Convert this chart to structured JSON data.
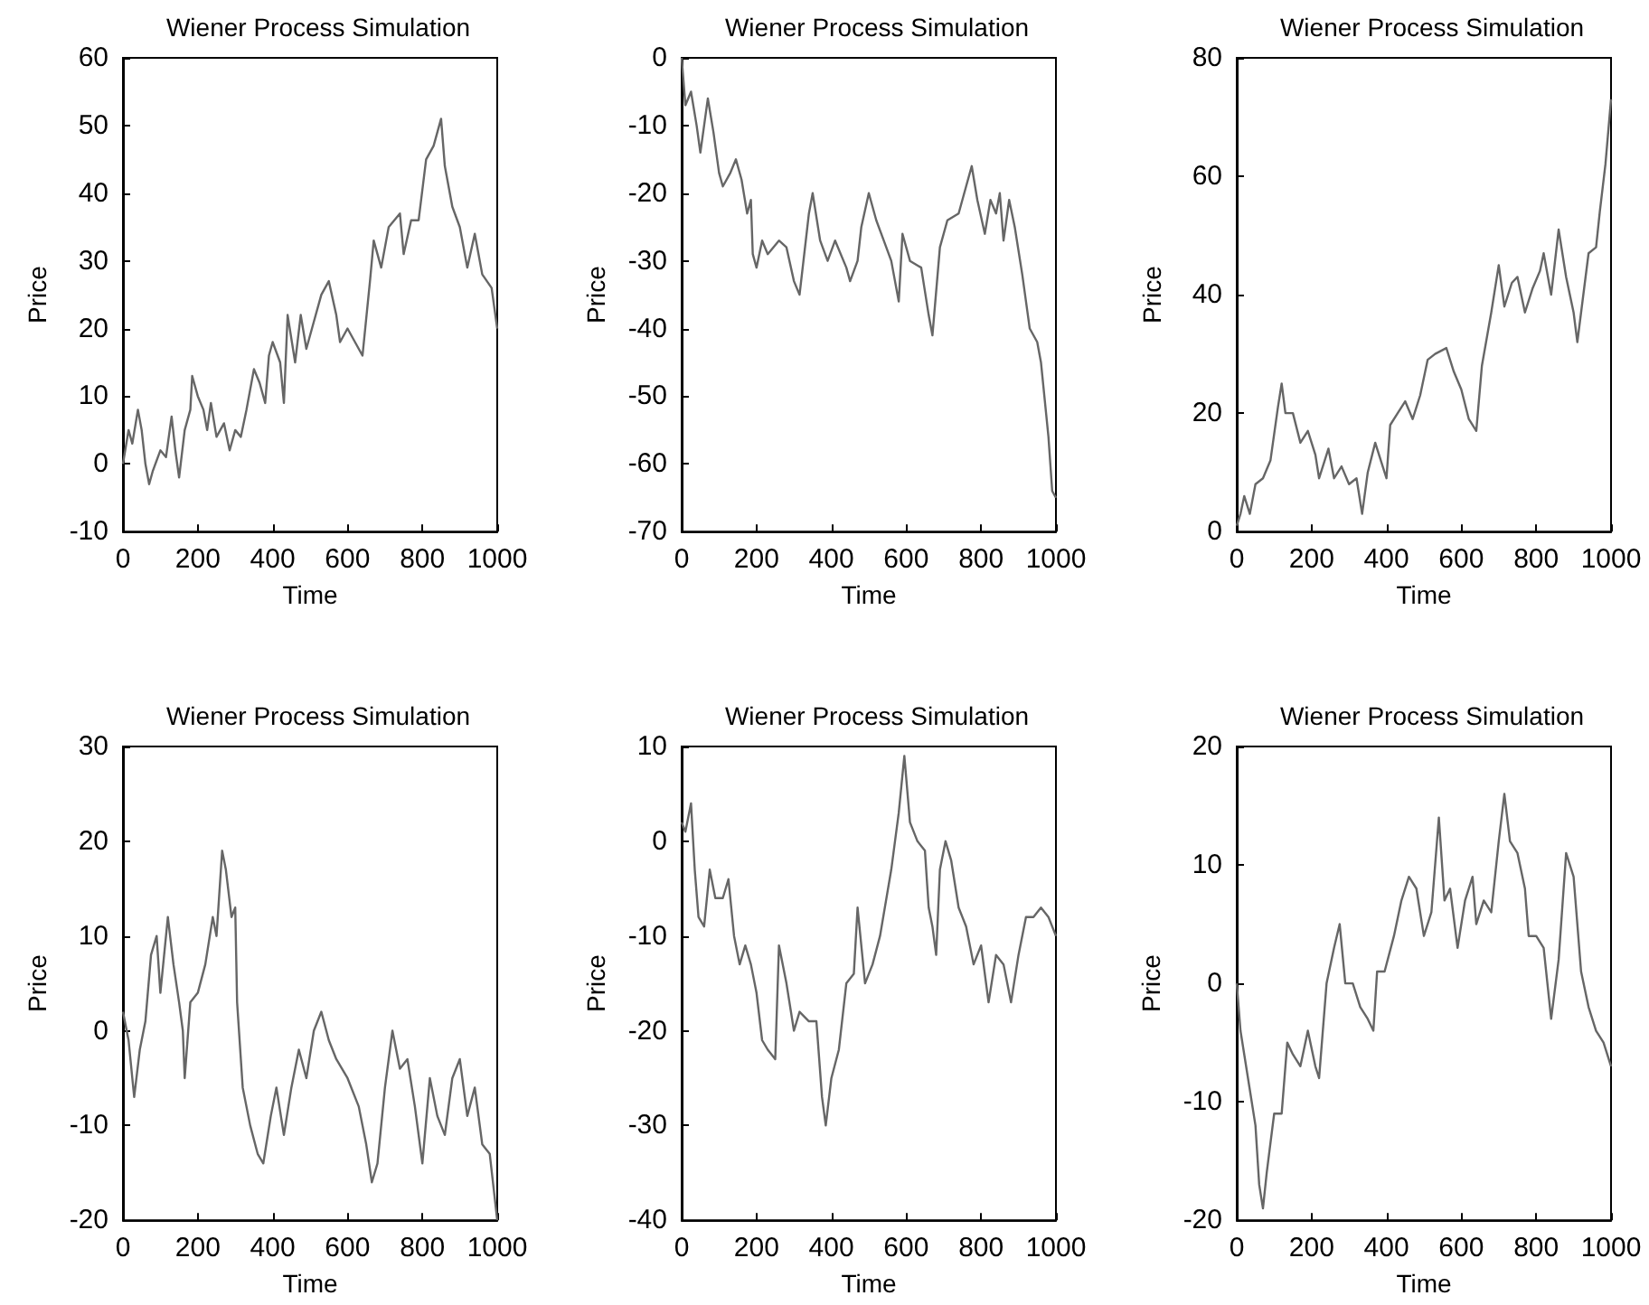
{
  "chart_data": [
    {
      "type": "line",
      "title": "Wiener Process Simulation",
      "xlabel": "Time",
      "ylabel": "Price",
      "color": "#666666",
      "marker": "none",
      "xlim": [
        0,
        1000
      ],
      "xticks": [
        0,
        200,
        400,
        600,
        800,
        1000
      ],
      "ylim": [
        -10,
        60
      ],
      "yticks": [
        -10,
        0,
        10,
        20,
        30,
        40,
        50,
        60
      ],
      "x": [
        0,
        15,
        25,
        40,
        50,
        60,
        70,
        80,
        100,
        115,
        130,
        140,
        150,
        165,
        180,
        185,
        200,
        215,
        225,
        235,
        250,
        270,
        285,
        300,
        315,
        330,
        350,
        365,
        380,
        390,
        400,
        420,
        430,
        440,
        460,
        475,
        490,
        510,
        530,
        550,
        570,
        580,
        600,
        620,
        640,
        660,
        670,
        690,
        710,
        740,
        750,
        770,
        790,
        810,
        830,
        850,
        860,
        880,
        900,
        920,
        940,
        960,
        985,
        1000
      ],
      "values": [
        0,
        5,
        3,
        8,
        5,
        0,
        -3,
        -1,
        2,
        1,
        7,
        2,
        -2,
        5,
        8,
        13,
        10,
        8,
        5,
        9,
        4,
        6,
        2,
        5,
        4,
        8,
        14,
        12,
        9,
        16,
        18,
        15,
        9,
        22,
        15,
        22,
        17,
        21,
        25,
        27,
        22,
        18,
        20,
        18,
        16,
        27,
        33,
        29,
        35,
        37,
        31,
        36,
        36,
        45,
        47,
        51,
        44,
        38,
        35,
        29,
        34,
        28,
        26,
        20
      ]
    },
    {
      "type": "line",
      "title": "Wiener Process Simulation",
      "xlabel": "Time",
      "ylabel": "Price",
      "color": "#666666",
      "marker": "none",
      "xlim": [
        0,
        1000
      ],
      "xticks": [
        0,
        200,
        400,
        600,
        800,
        1000
      ],
      "ylim": [
        -70,
        0
      ],
      "yticks": [
        -70,
        -60,
        -50,
        -40,
        -30,
        -20,
        -10,
        0
      ],
      "x": [
        0,
        10,
        25,
        40,
        50,
        65,
        70,
        85,
        100,
        110,
        130,
        145,
        160,
        175,
        185,
        190,
        200,
        215,
        230,
        260,
        280,
        300,
        315,
        340,
        350,
        370,
        390,
        410,
        440,
        450,
        470,
        480,
        500,
        520,
        540,
        560,
        580,
        590,
        610,
        640,
        660,
        670,
        690,
        710,
        740,
        760,
        775,
        790,
        810,
        825,
        840,
        850,
        860,
        875,
        890,
        910,
        930,
        950,
        960,
        980,
        990,
        1000
      ],
      "values": [
        0,
        -7,
        -5,
        -10,
        -14,
        -8,
        -6,
        -11,
        -17,
        -19,
        -17,
        -15,
        -18,
        -23,
        -21,
        -29,
        -31,
        -27,
        -29,
        -27,
        -28,
        -33,
        -35,
        -23,
        -20,
        -27,
        -30,
        -27,
        -31,
        -33,
        -30,
        -25,
        -20,
        -24,
        -27,
        -30,
        -36,
        -26,
        -30,
        -31,
        -38,
        -41,
        -28,
        -24,
        -23,
        -19,
        -16,
        -21,
        -26,
        -21,
        -23,
        -20,
        -27,
        -21,
        -25,
        -32,
        -40,
        -42,
        -45,
        -56,
        -64,
        -65
      ]
    },
    {
      "type": "line",
      "title": "Wiener Process Simulation",
      "xlabel": "Time",
      "ylabel": "Price",
      "color": "#666666",
      "marker": "none",
      "xlim": [
        0,
        1000
      ],
      "xticks": [
        0,
        200,
        400,
        600,
        800,
        1000
      ],
      "ylim": [
        0,
        80
      ],
      "yticks": [
        0,
        20,
        40,
        60,
        80
      ],
      "x": [
        0,
        10,
        20,
        35,
        50,
        70,
        90,
        110,
        120,
        130,
        150,
        170,
        190,
        210,
        220,
        245,
        260,
        280,
        300,
        320,
        335,
        350,
        370,
        385,
        400,
        410,
        430,
        450,
        470,
        490,
        510,
        530,
        560,
        580,
        600,
        620,
        640,
        655,
        680,
        700,
        715,
        735,
        750,
        770,
        790,
        810,
        820,
        840,
        860,
        880,
        900,
        910,
        920,
        940,
        960,
        970,
        985,
        1000
      ],
      "values": [
        1,
        3,
        6,
        3,
        8,
        9,
        12,
        21,
        25,
        20,
        20,
        15,
        17,
        13,
        9,
        14,
        9,
        11,
        8,
        9,
        3,
        10,
        15,
        12,
        9,
        18,
        20,
        22,
        19,
        23,
        29,
        30,
        31,
        27,
        24,
        19,
        17,
        28,
        37,
        45,
        38,
        42,
        43,
        37,
        41,
        44,
        47,
        40,
        51,
        43,
        37,
        32,
        37,
        47,
        48,
        54,
        62,
        73
      ]
    },
    {
      "type": "line",
      "title": "Wiener Process Simulation",
      "xlabel": "Time",
      "ylabel": "Price",
      "color": "#666666",
      "marker": "none",
      "xlim": [
        0,
        1000
      ],
      "xticks": [
        0,
        200,
        400,
        600,
        800,
        1000
      ],
      "ylim": [
        -20,
        30
      ],
      "yticks": [
        -20,
        -10,
        0,
        10,
        20,
        30
      ],
      "x": [
        0,
        15,
        30,
        45,
        60,
        75,
        90,
        100,
        120,
        135,
        150,
        160,
        165,
        180,
        200,
        220,
        240,
        250,
        265,
        275,
        290,
        300,
        305,
        320,
        340,
        360,
        375,
        395,
        410,
        430,
        450,
        470,
        490,
        510,
        530,
        550,
        570,
        600,
        630,
        650,
        665,
        680,
        700,
        720,
        740,
        760,
        780,
        800,
        820,
        840,
        860,
        880,
        900,
        920,
        940,
        960,
        980,
        1000
      ],
      "values": [
        2,
        -1,
        -7,
        -2,
        1,
        8,
        10,
        4,
        12,
        7,
        3,
        0,
        -5,
        3,
        4,
        7,
        12,
        10,
        19,
        17,
        12,
        13,
        3,
        -6,
        -10,
        -13,
        -14,
        -9,
        -6,
        -11,
        -6,
        -2,
        -5,
        0,
        2,
        -1,
        -3,
        -5,
        -8,
        -12,
        -16,
        -14,
        -6,
        0,
        -4,
        -3,
        -8,
        -14,
        -5,
        -9,
        -11,
        -5,
        -3,
        -9,
        -6,
        -12,
        -13,
        -20
      ]
    },
    {
      "type": "line",
      "title": "Wiener Process Simulation",
      "xlabel": "Time",
      "ylabel": "Price",
      "color": "#666666",
      "marker": "none",
      "xlim": [
        0,
        1000
      ],
      "xticks": [
        0,
        200,
        400,
        600,
        800,
        1000
      ],
      "ylim": [
        -40,
        10
      ],
      "yticks": [
        -40,
        -30,
        -20,
        -10,
        0,
        10
      ],
      "x": [
        0,
        10,
        25,
        35,
        45,
        60,
        75,
        90,
        110,
        125,
        140,
        155,
        170,
        185,
        200,
        215,
        230,
        250,
        260,
        280,
        300,
        315,
        340,
        360,
        375,
        385,
        400,
        420,
        440,
        460,
        470,
        490,
        510,
        530,
        560,
        580,
        595,
        610,
        630,
        650,
        660,
        670,
        680,
        690,
        705,
        720,
        740,
        760,
        780,
        800,
        820,
        840,
        860,
        880,
        900,
        920,
        940,
        960,
        980,
        1000
      ],
      "values": [
        2,
        1,
        4,
        -3,
        -8,
        -9,
        -3,
        -6,
        -6,
        -4,
        -10,
        -13,
        -11,
        -13,
        -16,
        -21,
        -22,
        -23,
        -11,
        -15,
        -20,
        -18,
        -19,
        -19,
        -27,
        -30,
        -25,
        -22,
        -15,
        -14,
        -7,
        -15,
        -13,
        -10,
        -3,
        3,
        9,
        2,
        0,
        -1,
        -7,
        -9,
        -12,
        -3,
        0,
        -2,
        -7,
        -9,
        -13,
        -11,
        -17,
        -12,
        -13,
        -17,
        -12,
        -8,
        -8,
        -7,
        -8,
        -10
      ]
    },
    {
      "type": "line",
      "title": "Wiener Process Simulation",
      "xlabel": "Time",
      "ylabel": "Price",
      "color": "#666666",
      "marker": "none",
      "xlim": [
        0,
        1000
      ],
      "xticks": [
        0,
        200,
        400,
        600,
        800,
        1000
      ],
      "ylim": [
        -20,
        20
      ],
      "yticks": [
        -20,
        -10,
        0,
        10,
        20
      ],
      "x": [
        0,
        10,
        20,
        35,
        50,
        60,
        70,
        80,
        100,
        120,
        135,
        150,
        170,
        190,
        210,
        220,
        240,
        260,
        275,
        290,
        310,
        330,
        350,
        365,
        375,
        395,
        420,
        440,
        460,
        480,
        500,
        520,
        540,
        555,
        570,
        590,
        610,
        630,
        640,
        660,
        680,
        700,
        715,
        730,
        750,
        770,
        780,
        800,
        820,
        840,
        860,
        880,
        900,
        920,
        940,
        960,
        980,
        1000
      ],
      "values": [
        0,
        -4,
        -6,
        -9,
        -12,
        -17,
        -19,
        -16,
        -11,
        -11,
        -5,
        -6,
        -7,
        -4,
        -7,
        -8,
        0,
        3,
        5,
        0,
        0,
        -2,
        -3,
        -4,
        1,
        1,
        4,
        7,
        9,
        8,
        4,
        6,
        14,
        7,
        8,
        3,
        7,
        9,
        5,
        7,
        6,
        12,
        16,
        12,
        11,
        8,
        4,
        4,
        3,
        -3,
        2,
        11,
        9,
        1,
        -2,
        -4,
        -5,
        -7
      ]
    }
  ]
}
